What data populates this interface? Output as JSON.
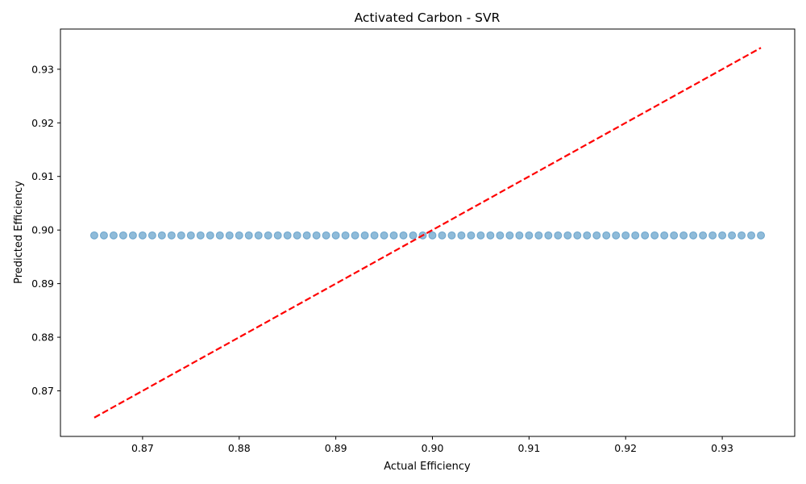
{
  "chart_data": {
    "type": "scatter",
    "title": "Activated Carbon - SVR",
    "xlabel": "Actual Efficiency",
    "ylabel": "Predicted Efficiency",
    "xlim": [
      0.8615,
      0.9375
    ],
    "ylim": [
      0.8615,
      0.9375
    ],
    "xticks": [
      0.87,
      0.88,
      0.89,
      0.9,
      0.91,
      0.92,
      0.93
    ],
    "yticks": [
      0.87,
      0.88,
      0.89,
      0.9,
      0.91,
      0.92,
      0.93
    ],
    "xtick_labels": [
      "0.87",
      "0.88",
      "0.89",
      "0.90",
      "0.91",
      "0.92",
      "0.93"
    ],
    "ytick_labels": [
      "0.87",
      "0.88",
      "0.89",
      "0.90",
      "0.91",
      "0.92",
      "0.93"
    ],
    "grid": false,
    "colors": {
      "points": "#1f77b4",
      "reference_line": "#ff0000"
    },
    "reference_line": {
      "style": "dashed",
      "x": [
        0.865,
        0.934
      ],
      "y": [
        0.865,
        0.934
      ]
    },
    "series": [
      {
        "x": [
          0.865,
          0.866,
          0.867,
          0.868,
          0.869,
          0.87,
          0.871,
          0.872,
          0.873,
          0.874,
          0.875,
          0.876,
          0.877,
          0.878,
          0.879,
          0.88,
          0.881,
          0.882,
          0.883,
          0.884,
          0.885,
          0.886,
          0.887,
          0.888,
          0.889,
          0.89,
          0.891,
          0.892,
          0.893,
          0.894,
          0.895,
          0.896,
          0.897,
          0.898,
          0.899,
          0.9,
          0.901,
          0.902,
          0.903,
          0.904,
          0.905,
          0.906,
          0.907,
          0.908,
          0.909,
          0.91,
          0.911,
          0.912,
          0.913,
          0.914,
          0.915,
          0.916,
          0.917,
          0.918,
          0.919,
          0.92,
          0.921,
          0.922,
          0.923,
          0.924,
          0.925,
          0.926,
          0.927,
          0.928,
          0.929,
          0.93,
          0.931,
          0.932,
          0.933,
          0.934
        ],
        "y": [
          0.899,
          0.899,
          0.899,
          0.899,
          0.899,
          0.899,
          0.899,
          0.899,
          0.899,
          0.899,
          0.899,
          0.899,
          0.899,
          0.899,
          0.899,
          0.899,
          0.899,
          0.899,
          0.899,
          0.899,
          0.899,
          0.899,
          0.899,
          0.899,
          0.899,
          0.899,
          0.899,
          0.899,
          0.899,
          0.899,
          0.899,
          0.899,
          0.899,
          0.899,
          0.899,
          0.899,
          0.899,
          0.899,
          0.899,
          0.899,
          0.899,
          0.899,
          0.899,
          0.899,
          0.899,
          0.899,
          0.899,
          0.899,
          0.899,
          0.899,
          0.899,
          0.899,
          0.899,
          0.899,
          0.899,
          0.899,
          0.899,
          0.899,
          0.899,
          0.899,
          0.899,
          0.899,
          0.899,
          0.899,
          0.899,
          0.899,
          0.899,
          0.899,
          0.899,
          0.899
        ]
      }
    ]
  }
}
